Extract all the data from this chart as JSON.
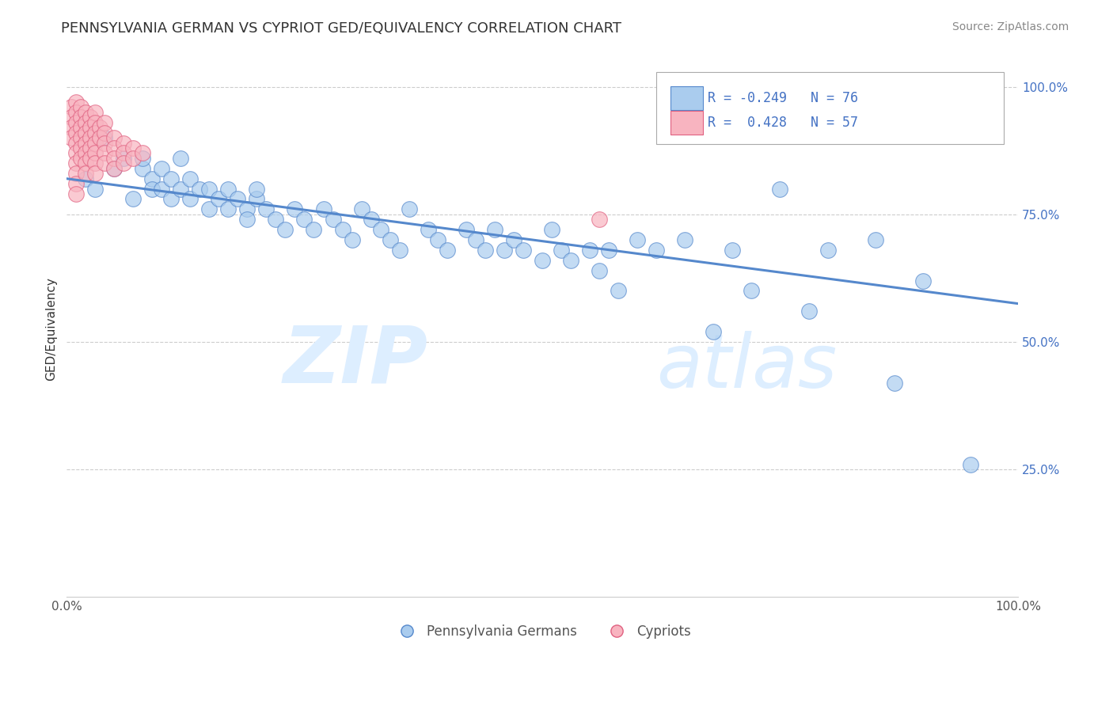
{
  "title": "PENNSYLVANIA GERMAN VS CYPRIOT GED/EQUIVALENCY CORRELATION CHART",
  "source": "Source: ZipAtlas.com",
  "ylabel": "GED/Equivalency",
  "xlim": [
    0.0,
    1.0
  ],
  "ylim": [
    0.0,
    1.05
  ],
  "xtick_labels": [
    "0.0%",
    "100.0%"
  ],
  "ytick_labels": [
    "25.0%",
    "50.0%",
    "75.0%",
    "100.0%"
  ],
  "ytick_positions": [
    0.25,
    0.5,
    0.75,
    1.0
  ],
  "legend_labels": [
    "Pennsylvania Germans",
    "Cypriots"
  ],
  "blue_color": "#aaccee",
  "blue_edge_color": "#5588cc",
  "pink_color": "#f8b4c0",
  "pink_edge_color": "#e06080",
  "r_blue": -0.249,
  "n_blue": 76,
  "r_pink": 0.428,
  "n_pink": 57,
  "watermark_zip": "ZIP",
  "watermark_atlas": "atlas",
  "blue_line_y_start": 0.82,
  "blue_line_y_end": 0.575,
  "title_fontsize": 13,
  "axis_label_fontsize": 11,
  "tick_fontsize": 11,
  "legend_fontsize": 12,
  "watermark_fontsize_zip": 72,
  "watermark_fontsize_atlas": 68,
  "watermark_color": "#ddeeff",
  "background_color": "#ffffff",
  "grid_color": "#cccccc",
  "source_fontsize": 10,
  "blue_scatter_x": [
    0.02,
    0.03,
    0.04,
    0.05,
    0.06,
    0.07,
    0.08,
    0.08,
    0.09,
    0.09,
    0.1,
    0.1,
    0.11,
    0.11,
    0.12,
    0.12,
    0.13,
    0.13,
    0.14,
    0.15,
    0.15,
    0.16,
    0.17,
    0.17,
    0.18,
    0.19,
    0.19,
    0.2,
    0.2,
    0.21,
    0.22,
    0.23,
    0.24,
    0.25,
    0.26,
    0.27,
    0.28,
    0.29,
    0.3,
    0.31,
    0.32,
    0.33,
    0.34,
    0.35,
    0.36,
    0.38,
    0.39,
    0.4,
    0.42,
    0.43,
    0.44,
    0.45,
    0.46,
    0.47,
    0.48,
    0.5,
    0.51,
    0.52,
    0.53,
    0.55,
    0.56,
    0.57,
    0.58,
    0.6,
    0.62,
    0.65,
    0.68,
    0.7,
    0.72,
    0.75,
    0.78,
    0.8,
    0.85,
    0.87,
    0.9,
    0.95
  ],
  "blue_scatter_y": [
    0.82,
    0.8,
    0.9,
    0.84,
    0.86,
    0.78,
    0.84,
    0.86,
    0.82,
    0.8,
    0.84,
    0.8,
    0.82,
    0.78,
    0.8,
    0.86,
    0.78,
    0.82,
    0.8,
    0.76,
    0.8,
    0.78,
    0.76,
    0.8,
    0.78,
    0.76,
    0.74,
    0.78,
    0.8,
    0.76,
    0.74,
    0.72,
    0.76,
    0.74,
    0.72,
    0.76,
    0.74,
    0.72,
    0.7,
    0.76,
    0.74,
    0.72,
    0.7,
    0.68,
    0.76,
    0.72,
    0.7,
    0.68,
    0.72,
    0.7,
    0.68,
    0.72,
    0.68,
    0.7,
    0.68,
    0.66,
    0.72,
    0.68,
    0.66,
    0.68,
    0.64,
    0.68,
    0.6,
    0.7,
    0.68,
    0.7,
    0.52,
    0.68,
    0.6,
    0.8,
    0.56,
    0.68,
    0.7,
    0.42,
    0.62,
    0.26
  ],
  "pink_scatter_x": [
    0.005,
    0.005,
    0.005,
    0.005,
    0.01,
    0.01,
    0.01,
    0.01,
    0.01,
    0.01,
    0.01,
    0.01,
    0.01,
    0.01,
    0.015,
    0.015,
    0.015,
    0.015,
    0.015,
    0.015,
    0.02,
    0.02,
    0.02,
    0.02,
    0.02,
    0.02,
    0.02,
    0.025,
    0.025,
    0.025,
    0.025,
    0.025,
    0.03,
    0.03,
    0.03,
    0.03,
    0.03,
    0.03,
    0.03,
    0.035,
    0.035,
    0.04,
    0.04,
    0.04,
    0.04,
    0.04,
    0.05,
    0.05,
    0.05,
    0.05,
    0.06,
    0.06,
    0.06,
    0.07,
    0.07,
    0.08,
    0.56
  ],
  "pink_scatter_y": [
    0.96,
    0.94,
    0.92,
    0.9,
    0.97,
    0.95,
    0.93,
    0.91,
    0.89,
    0.87,
    0.85,
    0.83,
    0.81,
    0.79,
    0.96,
    0.94,
    0.92,
    0.9,
    0.88,
    0.86,
    0.95,
    0.93,
    0.91,
    0.89,
    0.87,
    0.85,
    0.83,
    0.94,
    0.92,
    0.9,
    0.88,
    0.86,
    0.95,
    0.93,
    0.91,
    0.89,
    0.87,
    0.85,
    0.83,
    0.92,
    0.9,
    0.93,
    0.91,
    0.89,
    0.87,
    0.85,
    0.9,
    0.88,
    0.86,
    0.84,
    0.89,
    0.87,
    0.85,
    0.88,
    0.86,
    0.87,
    0.74
  ]
}
